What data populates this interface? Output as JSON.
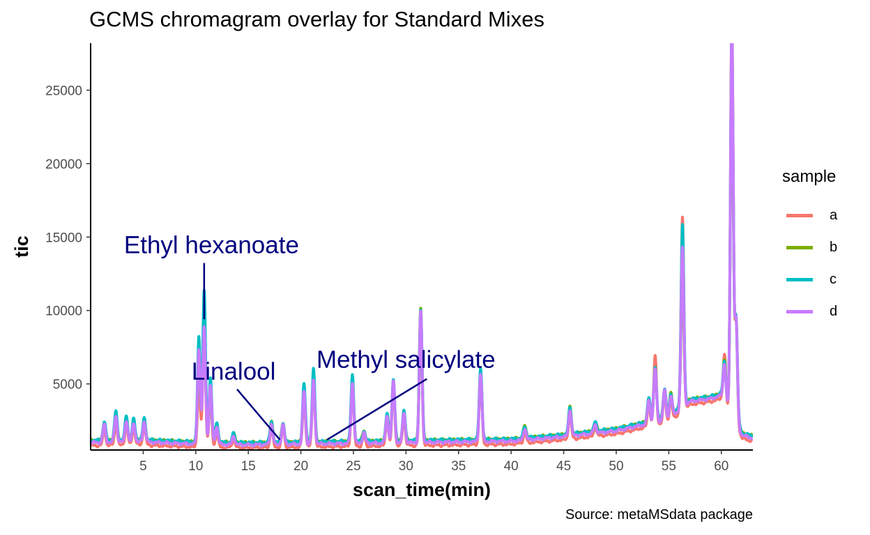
{
  "title": "GCMS chromagram overlay for Standard Mixes",
  "caption": "Source: metaMSdata package",
  "chart_data": {
    "type": "line",
    "xlabel": "scan_time(min)",
    "ylabel": "tic",
    "xlim": [
      0,
      63
    ],
    "ylim": [
      500,
      28200
    ],
    "xticks": [
      5,
      10,
      15,
      20,
      25,
      30,
      35,
      40,
      45,
      50,
      55,
      60
    ],
    "yticks": [
      5000,
      10000,
      15000,
      20000,
      25000
    ],
    "grid": false,
    "legend_title": "sample",
    "legend_position": "right",
    "baseline_anchors": [
      [
        0,
        1000
      ],
      [
        5,
        1050
      ],
      [
        10,
        900
      ],
      [
        15,
        850
      ],
      [
        20,
        900
      ],
      [
        25,
        950
      ],
      [
        30,
        1000
      ],
      [
        35,
        1050
      ],
      [
        40,
        1100
      ],
      [
        45,
        1400
      ],
      [
        50,
        1800
      ],
      [
        55,
        2600
      ],
      [
        57,
        3800
      ],
      [
        59,
        4000
      ],
      [
        60,
        4200
      ],
      [
        62,
        1500
      ],
      [
        63,
        1300
      ]
    ],
    "peaks": [
      {
        "t": 1.3,
        "h": 1200
      },
      {
        "t": 2.4,
        "h": 1800
      },
      {
        "t": 3.4,
        "h": 1500
      },
      {
        "t": 4.1,
        "h": 1300
      },
      {
        "t": 5.1,
        "h": 1400
      },
      {
        "t": 10.3,
        "h": 6500
      },
      {
        "t": 10.8,
        "h": 9400
      },
      {
        "t": 11.4,
        "h": 4000
      },
      {
        "t": 12.0,
        "h": 1200
      },
      {
        "t": 13.6,
        "h": 600
      },
      {
        "t": 17.2,
        "h": 1400
      },
      {
        "t": 18.3,
        "h": 1300
      },
      {
        "t": 20.3,
        "h": 3600
      },
      {
        "t": 21.2,
        "h": 4300
      },
      {
        "t": 24.9,
        "h": 4100
      },
      {
        "t": 26.0,
        "h": 700
      },
      {
        "t": 28.2,
        "h": 1800
      },
      {
        "t": 28.8,
        "h": 4200
      },
      {
        "t": 29.8,
        "h": 2000
      },
      {
        "t": 31.4,
        "h": 8900
      },
      {
        "t": 37.1,
        "h": 4600
      },
      {
        "t": 41.3,
        "h": 800
      },
      {
        "t": 45.6,
        "h": 1800
      },
      {
        "t": 48.0,
        "h": 600
      },
      {
        "t": 53.1,
        "h": 1600
      },
      {
        "t": 53.7,
        "h": 3600
      },
      {
        "t": 54.6,
        "h": 2000
      },
      {
        "t": 55.2,
        "h": 1500
      },
      {
        "t": 56.3,
        "h": 9500
      },
      {
        "t": 60.3,
        "h": 2600
      },
      {
        "t": 61.0,
        "h": 24500
      },
      {
        "t": 61.4,
        "h": 7000
      }
    ],
    "series": [
      {
        "name": "a",
        "color": "#F8766D",
        "scale": [
          0.9,
          0.85,
          1.0,
          1.0,
          0.95,
          0.7,
          0.85,
          0.9,
          0.8,
          1.0,
          1.0,
          1.0,
          1.0,
          1.0,
          1.0,
          1.0,
          1.0,
          1.0,
          1.0,
          1.0,
          1.0,
          1.0,
          1.0,
          1.0,
          1.0,
          1.3,
          1.0,
          1.0,
          1.38,
          1.3,
          1.12,
          1.0
        ],
        "baseline_offset": -200
      },
      {
        "name": "b",
        "color": "#7CAE00",
        "scale": [
          0.9,
          0.9,
          0.9,
          0.9,
          0.9,
          0.9,
          0.9,
          0.9,
          0.9,
          1.0,
          1.0,
          1.0,
          1.0,
          1.0,
          1.0,
          1.0,
          1.0,
          1.0,
          1.0,
          1.02,
          1.0,
          1.0,
          1.0,
          1.0,
          1.0,
          1.0,
          1.0,
          1.0,
          1.0,
          1.0,
          1.0,
          1.0
        ],
        "baseline_offset": 150
      },
      {
        "name": "c",
        "color": "#00BFC4",
        "scale": [
          1.05,
          1.1,
          1.1,
          1.1,
          1.05,
          1.1,
          1.1,
          1.1,
          1.1,
          1.0,
          1.0,
          1.0,
          1.1,
          1.15,
          1.1,
          1.0,
          1.0,
          1.0,
          1.0,
          1.0,
          1.05,
          1.0,
          1.0,
          1.0,
          1.0,
          1.0,
          1.0,
          1.0,
          1.3,
          1.0,
          1.05,
          1.0
        ],
        "baseline_offset": 150
      },
      {
        "name": "d",
        "color": "#C77CFF",
        "scale": [
          1.0,
          1.0,
          1.0,
          1.0,
          1.0,
          1.0,
          0.85,
          1.0,
          1.0,
          1.0,
          1.0,
          1.0,
          1.0,
          1.0,
          1.0,
          1.0,
          1.0,
          1.0,
          1.0,
          1.0,
          1.0,
          1.0,
          1.0,
          1.0,
          1.0,
          1.0,
          1.0,
          1.0,
          1.15,
          1.0,
          1.07,
          1.0
        ],
        "baseline_offset": 0
      }
    ],
    "annotations": [
      {
        "text": "Ethyl hexanoate",
        "label_x": 11.5,
        "label_y": 13900,
        "x": 10.8,
        "y": 9400
      },
      {
        "text": "Linalool",
        "label_x": 13.6,
        "label_y": 5300,
        "x": 18.0,
        "y": 1200
      },
      {
        "text": "Methyl salicylate",
        "label_x": 30.0,
        "label_y": 6100,
        "x": 22.5,
        "y": 1200
      }
    ]
  }
}
